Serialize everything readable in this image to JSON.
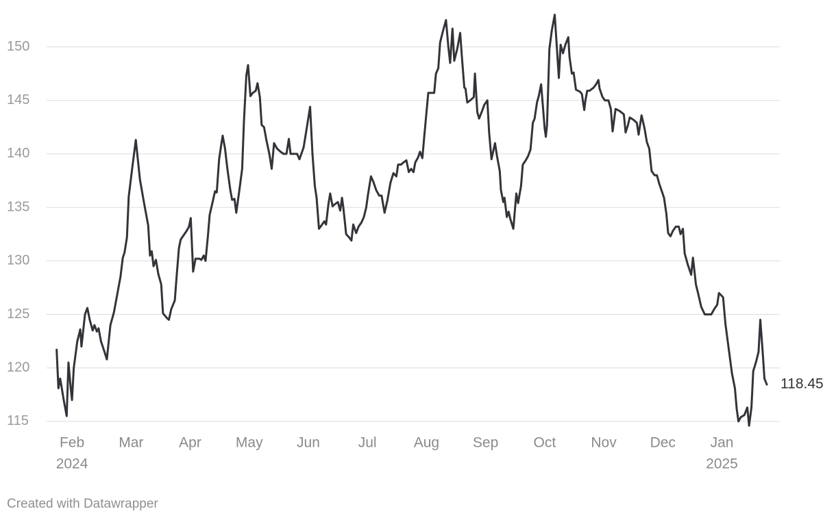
{
  "chart_data": {
    "type": "line",
    "x": [
      1.74,
      1.77,
      1.8,
      1.86,
      1.91,
      1.94,
      1.98,
      2.0,
      2.03,
      2.09,
      2.14,
      2.16,
      2.22,
      2.26,
      2.3,
      2.35,
      2.38,
      2.42,
      2.45,
      2.49,
      2.55,
      2.59,
      2.65,
      2.71,
      2.77,
      2.82,
      2.86,
      2.89,
      2.93,
      2.96,
      3.02,
      3.08,
      3.15,
      3.22,
      3.29,
      3.32,
      3.35,
      3.38,
      3.42,
      3.46,
      3.51,
      3.54,
      3.6,
      3.64,
      3.68,
      3.74,
      3.77,
      3.81,
      3.84,
      3.89,
      3.94,
      3.98,
      4.01,
      4.05,
      4.09,
      4.16,
      4.19,
      4.23,
      4.26,
      4.3,
      4.33,
      4.38,
      4.42,
      4.45,
      4.49,
      4.53,
      4.55,
      4.59,
      4.63,
      4.68,
      4.71,
      4.75,
      4.78,
      4.83,
      4.88,
      4.91,
      4.95,
      4.98,
      5.02,
      5.06,
      5.11,
      5.14,
      5.18,
      5.21,
      5.25,
      5.29,
      5.34,
      5.38,
      5.42,
      5.47,
      5.53,
      5.58,
      5.63,
      5.67,
      5.7,
      5.76,
      5.81,
      5.85,
      5.92,
      5.97,
      6.03,
      6.07,
      6.11,
      6.14,
      6.18,
      6.22,
      6.27,
      6.3,
      6.34,
      6.37,
      6.41,
      6.45,
      6.5,
      6.54,
      6.57,
      6.59,
      6.64,
      6.69,
      6.73,
      6.76,
      6.81,
      6.85,
      6.9,
      6.94,
      6.98,
      7.01,
      7.06,
      7.1,
      7.15,
      7.2,
      7.24,
      7.29,
      7.34,
      7.39,
      7.44,
      7.49,
      7.52,
      7.57,
      7.61,
      7.66,
      7.7,
      7.74,
      7.78,
      7.81,
      7.86,
      7.89,
      7.93,
      7.96,
      8.0,
      8.03,
      8.09,
      8.13,
      8.16,
      8.2,
      8.23,
      8.28,
      8.33,
      8.37,
      8.4,
      8.44,
      8.47,
      8.52,
      8.57,
      8.6,
      8.64,
      8.66,
      8.69,
      8.74,
      8.8,
      8.82,
      8.86,
      8.89,
      8.94,
      8.98,
      9.03,
      9.06,
      9.1,
      9.16,
      9.19,
      9.24,
      9.26,
      9.3,
      9.32,
      9.36,
      9.39,
      9.42,
      9.47,
      9.52,
      9.55,
      9.6,
      9.63,
      9.68,
      9.72,
      9.76,
      9.8,
      9.83,
      9.87,
      9.9,
      9.94,
      10.0,
      10.02,
      10.04,
      10.08,
      10.12,
      10.17,
      10.2,
      10.24,
      10.27,
      10.31,
      10.35,
      10.4,
      10.42,
      10.46,
      10.49,
      10.53,
      10.6,
      10.63,
      10.67,
      10.69,
      10.72,
      10.76,
      10.83,
      10.87,
      10.91,
      10.93,
      10.98,
      11.02,
      11.08,
      11.12,
      11.15,
      11.2,
      11.27,
      11.34,
      11.37,
      11.41,
      11.44,
      11.5,
      11.56,
      11.59,
      11.64,
      11.69,
      11.73,
      11.77,
      11.81,
      11.86,
      11.9,
      11.94,
      11.99,
      12.02,
      12.06,
      12.09,
      12.13,
      12.17,
      12.22,
      12.27,
      12.3,
      12.34,
      12.37,
      12.42,
      12.48,
      12.51,
      12.56,
      12.6,
      12.65,
      12.71,
      12.77,
      12.82,
      12.87,
      12.92,
      12.95,
      13.02,
      13.06,
      13.11,
      13.17,
      13.22,
      13.25,
      13.28,
      13.32,
      13.38,
      13.43,
      13.46,
      13.5,
      13.53,
      13.58,
      13.62,
      13.65,
      13.69,
      13.72,
      13.76
    ],
    "values": [
      121.7,
      118.1,
      119,
      117,
      115.5,
      120.5,
      118,
      117,
      120,
      122.5,
      123.6,
      122,
      125,
      125.6,
      124.5,
      123.5,
      124,
      123.4,
      123.7,
      122.5,
      121.5,
      120.8,
      124,
      125.2,
      127,
      128.5,
      130.3,
      130.8,
      132.2,
      136,
      138.7,
      141.3,
      137.6,
      135.4,
      133.3,
      130.5,
      130.9,
      129.5,
      130.1,
      128.8,
      127.8,
      125.1,
      124.7,
      124.5,
      125.5,
      126.3,
      128.5,
      131.2,
      132,
      132.4,
      132.8,
      133.2,
      134,
      129,
      130.2,
      130.2,
      130.1,
      130.5,
      130,
      132.3,
      134.3,
      135.5,
      136.5,
      136.4,
      139.5,
      141,
      141.7,
      140.5,
      138.6,
      136.6,
      135.7,
      135.8,
      134.5,
      136.5,
      138.6,
      143,
      147.3,
      148.3,
      145.4,
      145.7,
      145.9,
      146.6,
      145.3,
      142.7,
      142.5,
      141.3,
      140,
      138.6,
      141,
      140.5,
      140.2,
      140,
      140,
      141.4,
      140,
      140,
      140,
      139.5,
      140.6,
      142.3,
      144.4,
      140,
      137,
      135.9,
      133,
      133.3,
      133.7,
      133.4,
      135.3,
      136.3,
      135.1,
      135.3,
      135.5,
      134.7,
      135.9,
      135.1,
      132.5,
      132.2,
      131.9,
      133.4,
      132.6,
      133.2,
      133.6,
      134.1,
      135,
      136.2,
      137.9,
      137.4,
      136.6,
      136.1,
      136.1,
      134.5,
      135.7,
      137.3,
      138.2,
      137.9,
      139,
      139,
      139.2,
      139.4,
      138.3,
      138.6,
      138.3,
      139.2,
      139.7,
      140.2,
      139.6,
      141.5,
      143.9,
      145.7,
      145.7,
      145.7,
      147.5,
      148,
      150.4,
      151.5,
      152.5,
      150,
      148.5,
      151.7,
      148.7,
      149.8,
      151.3,
      149,
      146.2,
      146.1,
      144.8,
      145,
      145.3,
      147.5,
      143.9,
      143.3,
      144,
      144.6,
      145,
      142,
      139.5,
      141,
      139.9,
      138.4,
      136.6,
      135.5,
      135.9,
      134.1,
      134.6,
      133.9,
      133,
      136.3,
      135.4,
      137,
      139,
      139.4,
      139.8,
      140.4,
      142.9,
      143.3,
      144.8,
      145.4,
      146.5,
      142.4,
      141.6,
      142.7,
      149.8,
      151.5,
      153,
      150.5,
      147.1,
      150.2,
      149.4,
      150.2,
      150.9,
      149.1,
      147.5,
      147.6,
      146,
      145.8,
      145.6,
      144.1,
      145,
      145.9,
      145.9,
      146.2,
      146.5,
      146.9,
      146.1,
      145.3,
      145,
      145,
      144.2,
      142.1,
      144.2,
      144,
      143.7,
      142,
      142.7,
      143.4,
      143.2,
      142.9,
      141.8,
      143.6,
      142.4,
      141.1,
      140.5,
      138.4,
      138,
      138,
      137.2,
      136.4,
      135.9,
      134.4,
      132.6,
      132.3,
      132.8,
      133.2,
      133.2,
      132.5,
      133,
      130.7,
      129.7,
      128.7,
      130.3,
      127.8,
      126.9,
      125.7,
      125,
      125,
      125,
      125.5,
      125.9,
      127,
      126.6,
      124.1,
      122,
      119.5,
      118.1,
      116.2,
      115,
      115.4,
      115.6,
      116.3,
      114.6,
      116.3,
      119.7,
      120.6,
      121.5,
      124.5,
      121.5,
      119,
      118.45
    ],
    "color": "#333339",
    "xlim": [
      1.57,
      13.98
    ],
    "xticks": [
      {
        "value": 2,
        "label": "Feb"
      },
      {
        "value": 3,
        "label": "Mar"
      },
      {
        "value": 4,
        "label": "Apr"
      },
      {
        "value": 5,
        "label": "May"
      },
      {
        "value": 6,
        "label": "Jun"
      },
      {
        "value": 7,
        "label": "Jul"
      },
      {
        "value": 8,
        "label": "Aug"
      },
      {
        "value": 9,
        "label": "Sep"
      },
      {
        "value": 10,
        "label": "Oct"
      },
      {
        "value": 11,
        "label": "Nov"
      },
      {
        "value": 12,
        "label": "Dec"
      },
      {
        "value": 13,
        "label": "Jan"
      }
    ],
    "year_labels": [
      {
        "value": 2,
        "label": "2024"
      },
      {
        "value": 13,
        "label": "2025"
      }
    ],
    "ylim": [
      114.1,
      153.1
    ],
    "yticks": [
      115,
      120,
      125,
      130,
      135,
      140,
      145,
      150
    ],
    "grid": true,
    "credit": "Created with Datawrapper"
  }
}
